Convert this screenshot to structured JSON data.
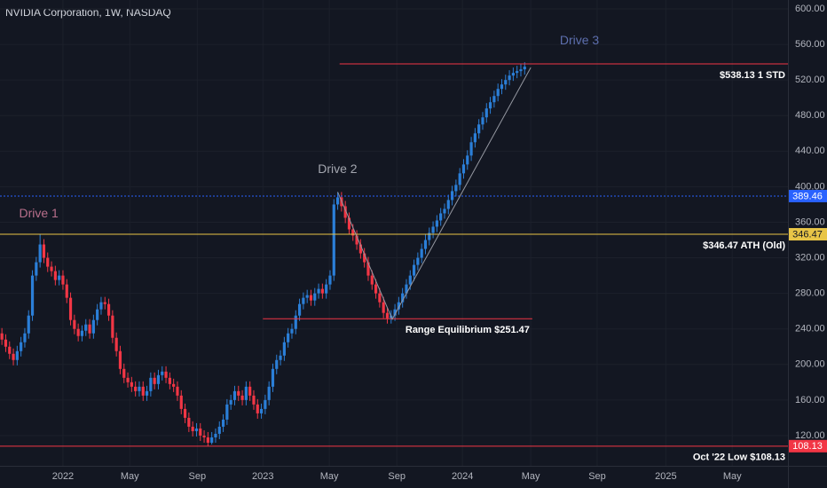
{
  "chart_data": {
    "type": "candlestick",
    "title": "NVIDIA Corporation, 1W, NASDAQ",
    "up_color": "#2b7fd8",
    "down_color": "#f23645",
    "open": [
      235,
      228,
      220,
      212,
      205,
      215,
      225,
      235,
      255,
      300,
      315,
      335,
      320,
      310,
      305,
      295,
      300,
      290,
      275,
      250,
      240,
      232,
      238,
      245,
      235,
      250,
      262,
      270,
      268,
      255,
      230,
      215,
      195,
      185,
      180,
      175,
      170,
      175,
      165,
      170,
      185,
      178,
      188,
      192,
      185,
      178,
      175,
      165,
      150,
      140,
      130,
      125,
      128,
      120,
      118,
      112,
      118,
      122,
      130,
      138,
      155,
      160,
      170,
      165,
      160,
      175,
      165,
      155,
      145,
      150,
      160,
      175,
      195,
      205,
      210,
      225,
      235,
      240,
      255,
      268,
      275,
      278,
      272,
      280,
      285,
      280,
      290,
      300,
      380,
      388,
      378,
      365,
      352,
      345,
      335,
      325,
      315,
      300,
      290,
      280,
      270,
      258,
      252,
      255,
      262,
      270,
      280,
      290,
      300,
      312,
      320,
      330,
      340,
      348,
      355,
      362,
      370,
      375,
      385,
      395,
      402,
      415,
      425,
      435,
      450,
      460,
      470,
      478,
      488,
      495,
      502,
      510,
      515,
      520,
      525,
      528,
      530,
      532
    ],
    "high": [
      241,
      234,
      226,
      218,
      221,
      231,
      241,
      261,
      306,
      321,
      346,
      341,
      326,
      316,
      311,
      306,
      306,
      296,
      281,
      256,
      246,
      244,
      251,
      251,
      256,
      268,
      276,
      276,
      274,
      261,
      236,
      221,
      201,
      191,
      186,
      181,
      181,
      181,
      176,
      191,
      191,
      194,
      198,
      198,
      191,
      184,
      181,
      171,
      156,
      146,
      136,
      134,
      134,
      126,
      124,
      124,
      128,
      136,
      144,
      161,
      166,
      176,
      176,
      171,
      181,
      181,
      171,
      161,
      156,
      166,
      181,
      201,
      211,
      216,
      231,
      241,
      246,
      261,
      274,
      281,
      284,
      284,
      286,
      291,
      291,
      296,
      306,
      386,
      394,
      394,
      384,
      371,
      358,
      351,
      341,
      331,
      321,
      306,
      296,
      286,
      276,
      264,
      261,
      268,
      276,
      286,
      296,
      306,
      318,
      326,
      336,
      346,
      354,
      361,
      368,
      376,
      381,
      391,
      401,
      408,
      421,
      431,
      441,
      456,
      466,
      476,
      484,
      494,
      501,
      508,
      516,
      521,
      526,
      531,
      534,
      536,
      538,
      540
    ],
    "low": [
      222,
      214,
      206,
      199,
      199,
      209,
      219,
      229,
      249,
      294,
      309,
      314,
      304,
      299,
      289,
      289,
      284,
      269,
      244,
      234,
      226,
      226,
      232,
      229,
      229,
      244,
      256,
      262,
      249,
      224,
      209,
      189,
      179,
      174,
      169,
      164,
      164,
      159,
      159,
      164,
      172,
      172,
      182,
      179,
      172,
      169,
      159,
      144,
      134,
      124,
      119,
      119,
      114,
      112,
      108,
      110,
      112,
      116,
      124,
      132,
      149,
      154,
      159,
      154,
      154,
      159,
      149,
      139,
      139,
      144,
      154,
      169,
      189,
      199,
      204,
      219,
      229,
      234,
      249,
      262,
      269,
      266,
      266,
      274,
      274,
      274,
      284,
      294,
      374,
      372,
      359,
      346,
      339,
      329,
      319,
      309,
      294,
      284,
      274,
      264,
      252,
      246,
      246,
      249,
      256,
      264,
      274,
      284,
      294,
      306,
      314,
      324,
      334,
      342,
      349,
      356,
      364,
      369,
      379,
      389,
      396,
      409,
      419,
      429,
      444,
      454,
      464,
      472,
      482,
      489,
      496,
      504,
      509,
      514,
      519,
      522,
      524,
      526
    ],
    "close": [
      228,
      220,
      212,
      205,
      215,
      225,
      235,
      255,
      300,
      315,
      335,
      320,
      310,
      305,
      295,
      300,
      290,
      275,
      250,
      240,
      232,
      238,
      245,
      235,
      250,
      262,
      270,
      268,
      255,
      230,
      215,
      195,
      185,
      180,
      175,
      170,
      175,
      165,
      170,
      185,
      178,
      188,
      192,
      185,
      178,
      175,
      165,
      150,
      140,
      130,
      125,
      128,
      120,
      118,
      112,
      118,
      122,
      130,
      138,
      155,
      160,
      170,
      165,
      160,
      175,
      165,
      155,
      145,
      150,
      160,
      175,
      195,
      205,
      210,
      225,
      235,
      240,
      255,
      268,
      275,
      278,
      272,
      280,
      285,
      280,
      290,
      300,
      380,
      388,
      378,
      365,
      352,
      345,
      335,
      325,
      315,
      300,
      290,
      280,
      270,
      258,
      252,
      255,
      262,
      270,
      280,
      290,
      300,
      312,
      320,
      330,
      340,
      348,
      355,
      362,
      370,
      375,
      385,
      395,
      402,
      415,
      425,
      435,
      450,
      460,
      470,
      478,
      488,
      495,
      502,
      510,
      515,
      520,
      525,
      528,
      530,
      532,
      535
    ],
    "xlim": [
      -0.5,
      206
    ],
    "xticks": [
      {
        "value": 16,
        "label": "2022"
      },
      {
        "value": 33.5,
        "label": "May"
      },
      {
        "value": 51.2,
        "label": "Sep"
      },
      {
        "value": 68.4,
        "label": "2023"
      },
      {
        "value": 85.8,
        "label": "May"
      },
      {
        "value": 103.5,
        "label": "Sep"
      },
      {
        "value": 120.7,
        "label": "2024"
      },
      {
        "value": 138.6,
        "label": "May"
      },
      {
        "value": 156,
        "label": "Sep"
      },
      {
        "value": 174,
        "label": "2025"
      },
      {
        "value": 191.4,
        "label": "May"
      }
    ],
    "ylim": [
      86,
      610
    ],
    "yticks": [
      {
        "value": 120,
        "label": "120.00"
      },
      {
        "value": 160,
        "label": "160.00"
      },
      {
        "value": 200,
        "label": "200.00"
      },
      {
        "value": 240,
        "label": "240.00"
      },
      {
        "value": 280,
        "label": "280.00"
      },
      {
        "value": 320,
        "label": "320.00"
      },
      {
        "value": 360,
        "label": "360.00"
      },
      {
        "value": 400,
        "label": "400.00"
      },
      {
        "value": 440,
        "label": "440.00"
      },
      {
        "value": 480,
        "label": "480.00"
      },
      {
        "value": 520,
        "label": "520.00"
      },
      {
        "value": 560,
        "label": "560.00"
      },
      {
        "value": 600,
        "label": "600.00"
      }
    ],
    "levels": [
      {
        "value": 538.13,
        "label": "$538.13 1 STD",
        "color": "#f23645",
        "x": [
          88.5,
          206
        ]
      },
      {
        "value": 389.46,
        "color": "#2962ff",
        "style": "dotted",
        "tag": true,
        "x": [
          -0.5,
          206
        ]
      },
      {
        "value": 346.47,
        "label": "$346.47 ATH (Old)",
        "color": "#e8c547",
        "tag": true,
        "x": [
          -0.5,
          206
        ]
      },
      {
        "value": 251.47,
        "label": "Range Equilibrium $251.47",
        "color": "#f23645",
        "x": [
          68.4,
          139
        ]
      },
      {
        "value": 108.13,
        "label": "Oct '22 Low $108.13",
        "color": "#f23645",
        "tag": true,
        "x": [
          -0.5,
          206
        ]
      }
    ],
    "trend": {
      "color": "#9598a1",
      "x": [
        88,
        102.3,
        138.6
      ],
      "y": [
        394,
        251,
        534
      ]
    },
    "annotations": [
      {
        "text": "Drive 1",
        "x": 4.5,
        "y": 369,
        "color": "#b86f8b"
      },
      {
        "text": "Drive 2",
        "x": 82.8,
        "y": 419,
        "color": "#a3a6af"
      },
      {
        "text": "Drive 3",
        "x": 146.2,
        "y": 564,
        "color": "#5d6fae"
      }
    ]
  }
}
